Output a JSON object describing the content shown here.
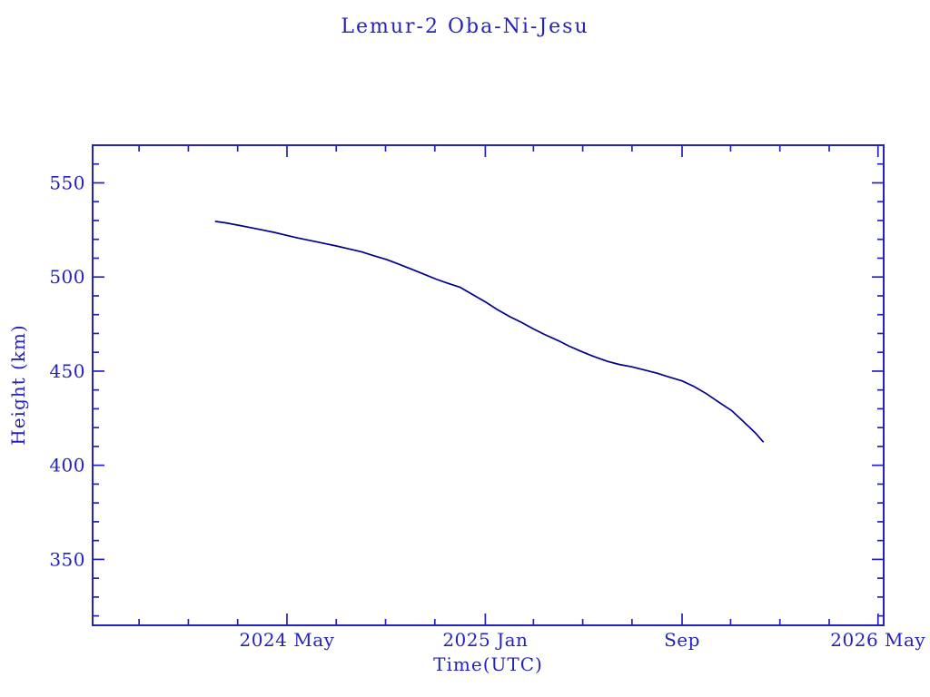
{
  "page": {
    "background_color": "#ffffff"
  },
  "chart_data": {
    "type": "line",
    "title": "Lemur-2 Oba-Ni-Jesu",
    "xlabel": "Time(UTC)",
    "ylabel": "Height (km)",
    "grid": false,
    "legend": "none",
    "axis_color": "#2323bb",
    "line_color": "#00008b",
    "ylim": [
      315,
      570
    ],
    "x_range": [
      "2023-09-04",
      "2026-05-08"
    ],
    "y_major_ticks": [
      350,
      400,
      450,
      500,
      550
    ],
    "y_minor_step_km": 10,
    "x_major_ticks": [
      {
        "date": "2024-05-01",
        "label": "2024 May"
      },
      {
        "date": "2025-01-01",
        "label": "2025 Jan"
      },
      {
        "date": "2025-09-01",
        "label": "Sep"
      },
      {
        "date": "2026-05-01",
        "label": "2026 May"
      }
    ],
    "x_minor_step_months": 2,
    "series": [
      {
        "name": "Lemur-2 Oba-Ni-Jesu orbital height",
        "points": [
          [
            "2024-02-03",
            529.5
          ],
          [
            "2024-02-15",
            528.8
          ],
          [
            "2024-03-01",
            527.6
          ],
          [
            "2024-03-15",
            526.4
          ],
          [
            "2024-04-01",
            525.0
          ],
          [
            "2024-04-15",
            523.7
          ],
          [
            "2024-05-01",
            522.1
          ],
          [
            "2024-05-15",
            520.7
          ],
          [
            "2024-06-01",
            519.2
          ],
          [
            "2024-06-15",
            517.9
          ],
          [
            "2024-07-01",
            516.5
          ],
          [
            "2024-07-15",
            515.1
          ],
          [
            "2024-08-01",
            513.4
          ],
          [
            "2024-08-15",
            511.5
          ],
          [
            "2024-09-01",
            509.3
          ],
          [
            "2024-09-15",
            507.0
          ],
          [
            "2024-10-01",
            504.3
          ],
          [
            "2024-10-15",
            501.9
          ],
          [
            "2024-11-01",
            498.9
          ],
          [
            "2024-11-15",
            496.8
          ],
          [
            "2024-12-01",
            494.5
          ],
          [
            "2024-12-15",
            491.0
          ],
          [
            "2025-01-01",
            486.8
          ],
          [
            "2025-01-15",
            482.9
          ],
          [
            "2025-02-01",
            478.8
          ],
          [
            "2025-02-15",
            475.8
          ],
          [
            "2025-03-01",
            472.5
          ],
          [
            "2025-03-15",
            469.5
          ],
          [
            "2025-04-01",
            466.2
          ],
          [
            "2025-04-15",
            463.2
          ],
          [
            "2025-05-01",
            460.2
          ],
          [
            "2025-05-15",
            457.8
          ],
          [
            "2025-06-01",
            455.2
          ],
          [
            "2025-06-15",
            453.6
          ],
          [
            "2025-07-01",
            452.3
          ],
          [
            "2025-07-15",
            450.8
          ],
          [
            "2025-08-01",
            448.9
          ],
          [
            "2025-08-15",
            447.0
          ],
          [
            "2025-09-01",
            444.8
          ],
          [
            "2025-09-15",
            442.0
          ],
          [
            "2025-10-01",
            438.0
          ],
          [
            "2025-10-15",
            433.9
          ],
          [
            "2025-11-01",
            429.1
          ],
          [
            "2025-11-15",
            423.5
          ],
          [
            "2025-12-01",
            417.0
          ],
          [
            "2025-12-10",
            412.5
          ]
        ]
      }
    ]
  }
}
